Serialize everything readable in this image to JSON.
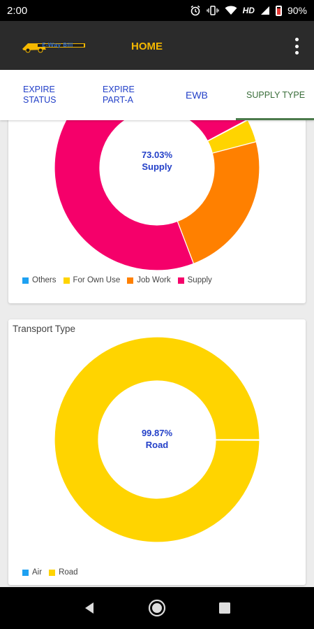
{
  "status_bar": {
    "time": "2:00",
    "network": "HD",
    "battery": "90%"
  },
  "app_bar": {
    "title": "HOME",
    "logo_text": "E-Way Bill"
  },
  "tabs": [
    {
      "line1": "EXPIRE",
      "line2": "STATUS",
      "selected": false
    },
    {
      "line1": "EXPIRE",
      "line2": "PART-A",
      "selected": false
    },
    {
      "line1": "EWB",
      "line2": "",
      "selected": false
    },
    {
      "line1": "SUPPLY TYPE",
      "line2": "",
      "selected": true
    }
  ],
  "supply_card": {
    "center_percent": "73.03%",
    "center_label": "Supply",
    "legend": [
      {
        "name": "Others",
        "color": "#1ea1f2"
      },
      {
        "name": "For Own Use",
        "color": "#ffd400"
      },
      {
        "name": "Job Work",
        "color": "#ff8000"
      },
      {
        "name": "Supply",
        "color": "#f5006a"
      }
    ]
  },
  "transport_card": {
    "title": "Transport Type",
    "center_percent": "99.87%",
    "center_label": "Road",
    "legend": [
      {
        "name": "Air",
        "color": "#1ea1f2"
      },
      {
        "name": "Road",
        "color": "#ffd400"
      }
    ]
  },
  "chart_data": [
    {
      "type": "pie",
      "categories": [
        "Others",
        "For Own Use",
        "Job Work",
        "Supply"
      ],
      "values": [
        0.1,
        3.6,
        23.27,
        73.03
      ],
      "colors": [
        "#1ea1f2",
        "#ffd400",
        "#ff8000",
        "#f5006a"
      ],
      "title": "",
      "legend_position": "bottom-left"
    },
    {
      "type": "pie",
      "categories": [
        "Air",
        "Road"
      ],
      "values": [
        0.13,
        99.87
      ],
      "colors": [
        "#1ea1f2",
        "#ffd400"
      ],
      "title": "Transport Type",
      "legend_position": "bottom-left"
    }
  ]
}
